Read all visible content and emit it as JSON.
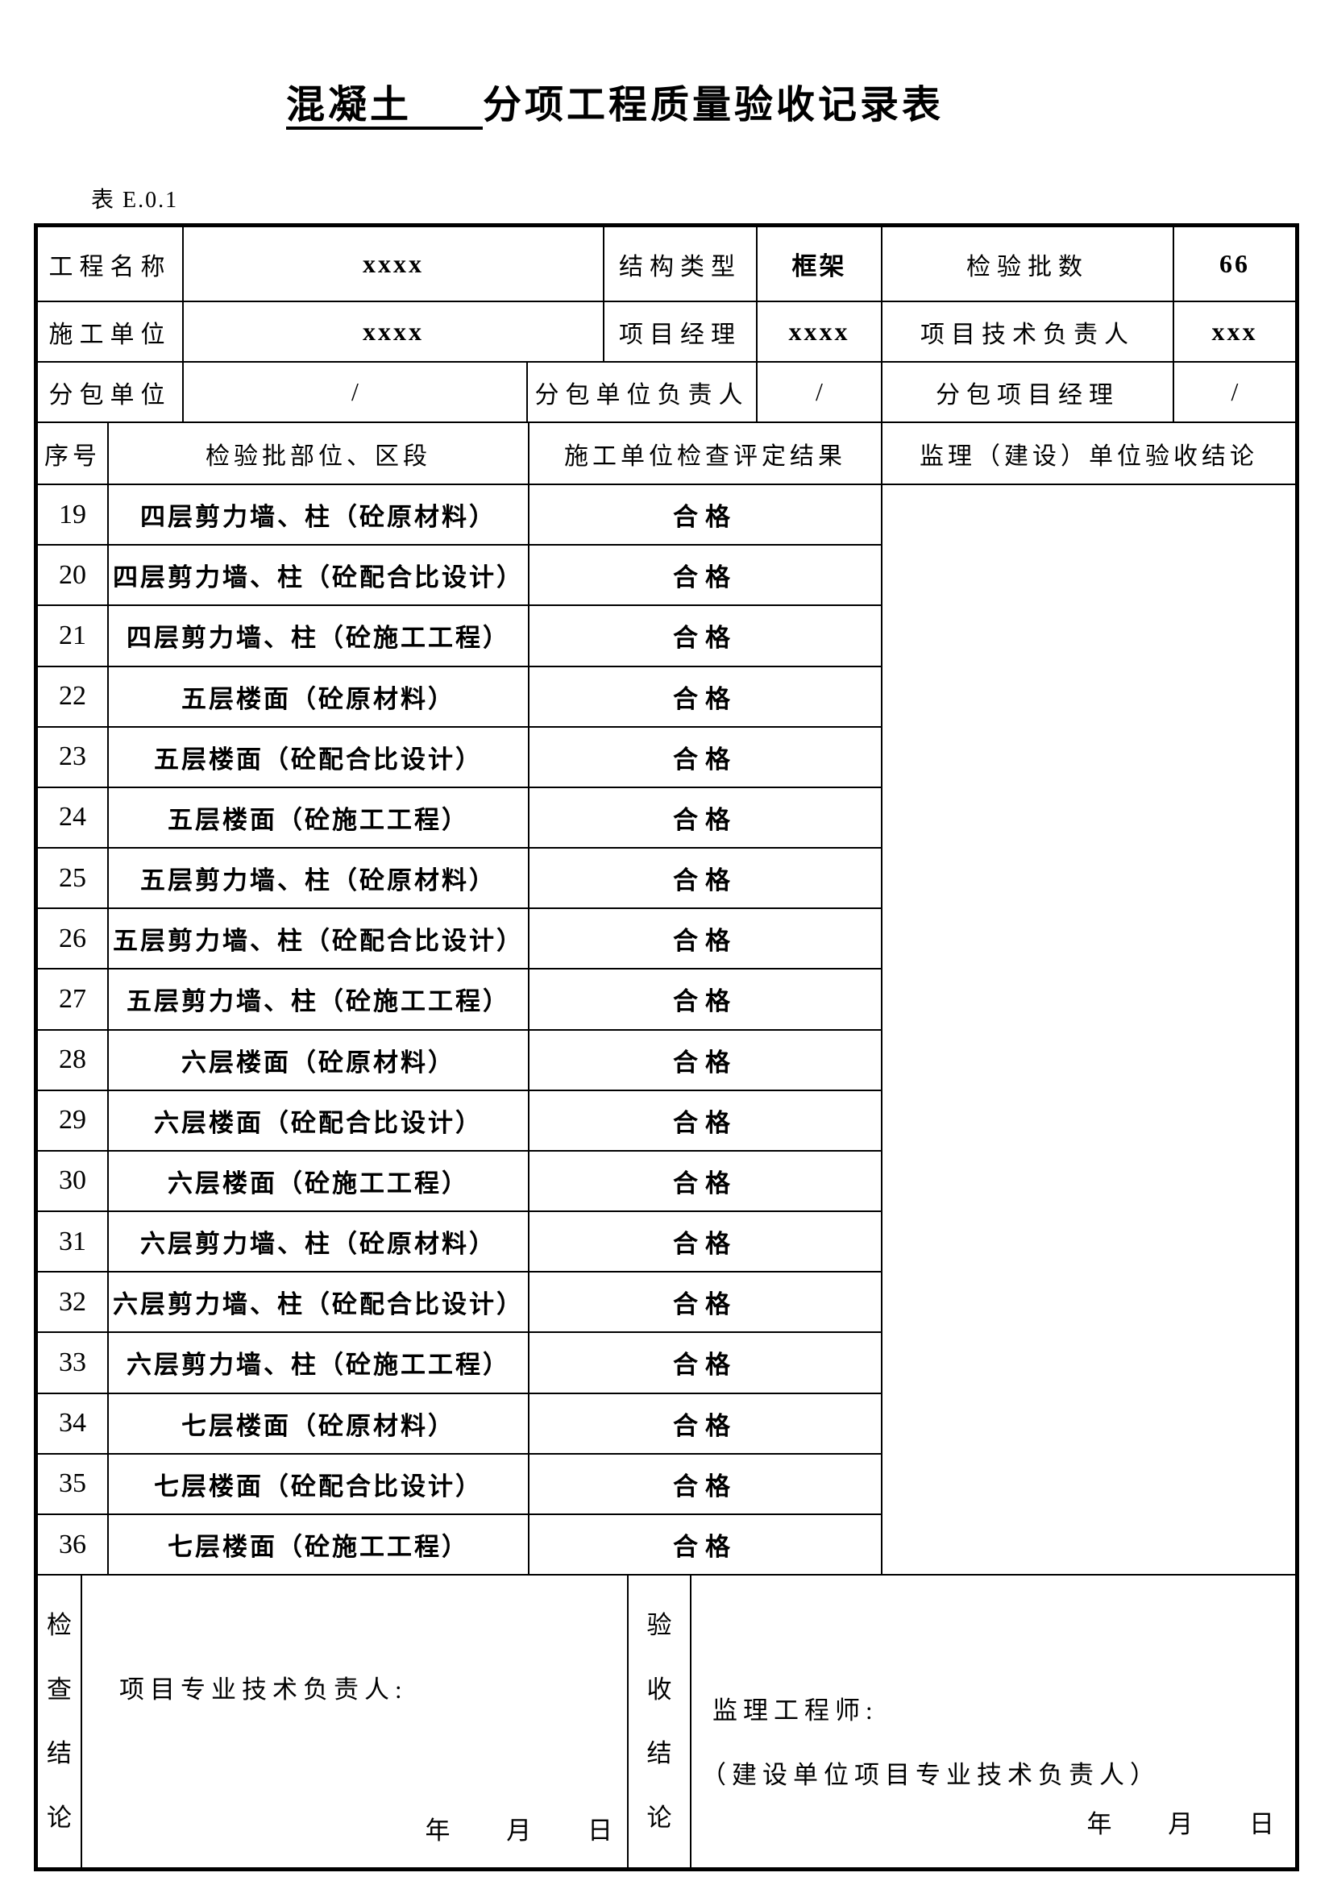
{
  "page": {
    "title_blank": "混凝土",
    "title_rest": "分项工程质量验收记录表",
    "table_label": "表 E.0.1"
  },
  "info": {
    "row1": {
      "label1": "工程名称",
      "value1": "xxxx",
      "label2": "结构类型",
      "value2": "框架",
      "label3": "检验批数",
      "value3": "66"
    },
    "row2": {
      "label1": "施工单位",
      "value1": "xxxx",
      "label2": "项目经理",
      "value2": "xxxx",
      "label3": "项目技术负责人",
      "value3": "xxx"
    },
    "row3": {
      "label1": "分包单位",
      "value1": "/",
      "label2": "分包单位负责人",
      "value2": "/",
      "label3": "分包项目经理",
      "value3": "/"
    }
  },
  "header": {
    "col_no": "序号",
    "col_part": "检验批部位、区段",
    "col_result": "施工单位检查评定结果",
    "col_conclusion": "监理（建设）单位验收结论"
  },
  "rows": [
    {
      "no": "19",
      "part": "四层剪力墙、柱（砼原材料）",
      "result": "合格"
    },
    {
      "no": "20",
      "part": "四层剪力墙、柱（砼配合比设计）",
      "result": "合格"
    },
    {
      "no": "21",
      "part": "四层剪力墙、柱（砼施工工程）",
      "result": "合格"
    },
    {
      "no": "22",
      "part": "五层楼面（砼原材料）",
      "result": "合格"
    },
    {
      "no": "23",
      "part": "五层楼面（砼配合比设计）",
      "result": "合格"
    },
    {
      "no": "24",
      "part": "五层楼面（砼施工工程）",
      "result": "合格"
    },
    {
      "no": "25",
      "part": "五层剪力墙、柱（砼原材料）",
      "result": "合格"
    },
    {
      "no": "26",
      "part": "五层剪力墙、柱（砼配合比设计）",
      "result": "合格"
    },
    {
      "no": "27",
      "part": "五层剪力墙、柱（砼施工工程）",
      "result": "合格"
    },
    {
      "no": "28",
      "part": "六层楼面（砼原材料）",
      "result": "合格"
    },
    {
      "no": "29",
      "part": "六层楼面（砼配合比设计）",
      "result": "合格"
    },
    {
      "no": "30",
      "part": "六层楼面（砼施工工程）",
      "result": "合格"
    },
    {
      "no": "31",
      "part": "六层剪力墙、柱（砼原材料）",
      "result": "合格"
    },
    {
      "no": "32",
      "part": "六层剪力墙、柱（砼配合比设计）",
      "result": "合格"
    },
    {
      "no": "33",
      "part": "六层剪力墙、柱（砼施工工程）",
      "result": "合格"
    },
    {
      "no": "34",
      "part": "七层楼面（砼原材料）",
      "result": "合格"
    },
    {
      "no": "35",
      "part": "七层楼面（砼配合比设计）",
      "result": "合格"
    },
    {
      "no": "36",
      "part": "七层楼面（砼施工工程）",
      "result": "合格"
    }
  ],
  "footer": {
    "left_title": "检查结论",
    "left_signer": "项目专业技术负责人:",
    "left_date": "年 月 日",
    "right_title": "验收结论",
    "right_signer": "监理工程师:",
    "right_signer2": "（建设单位项目专业技术负责人）",
    "right_date": "年 月 日"
  }
}
